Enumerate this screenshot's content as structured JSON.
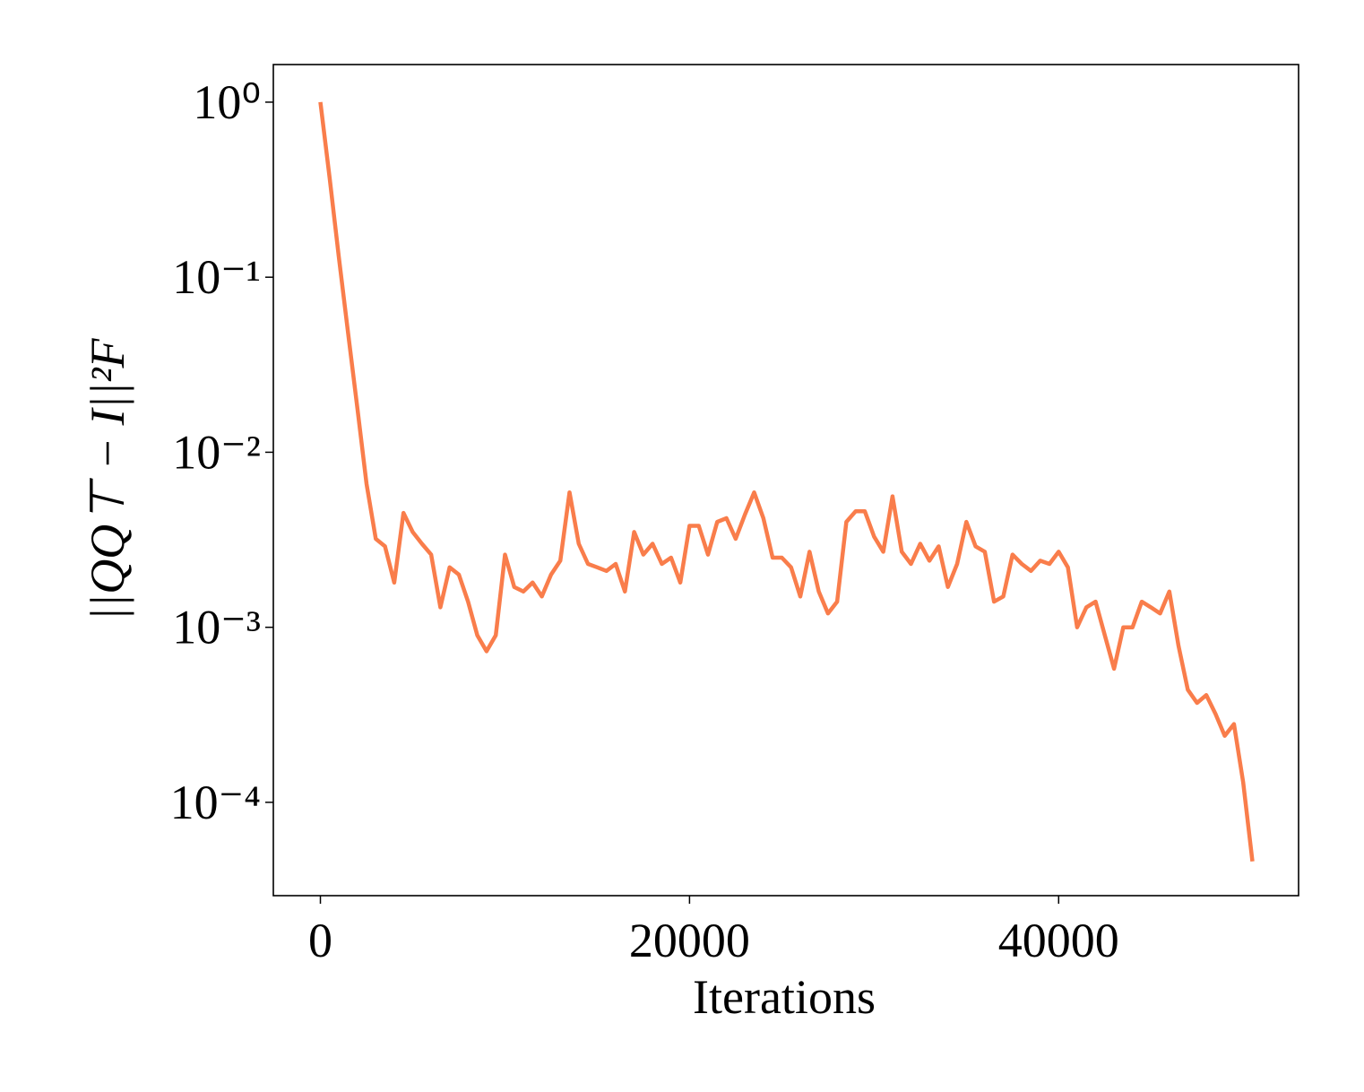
{
  "chart_data": {
    "type": "line",
    "xlabel": "Iterations",
    "ylabel": "||QQ⊤ − I||²F",
    "yscale": "log",
    "grid": false,
    "color": "#f97d4b",
    "xlim": [
      -2550,
      53000
    ],
    "ylim": [
      2.93e-05,
      1.64
    ],
    "xticks": [
      0,
      20000,
      40000
    ],
    "yticks": [
      {
        "value": 1,
        "label": "10⁰"
      },
      {
        "value": 0.1,
        "label": "10⁻¹"
      },
      {
        "value": 0.01,
        "label": "10⁻²"
      },
      {
        "value": 0.001,
        "label": "10⁻³"
      },
      {
        "value": 0.0001,
        "label": "10⁻⁴"
      }
    ],
    "x": [
      0,
      500,
      1000,
      1500,
      2000,
      2500,
      3000,
      3500,
      4000,
      4500,
      5000,
      5500,
      6000,
      6500,
      7000,
      7500,
      8000,
      8500,
      9000,
      9500,
      10000,
      10500,
      11000,
      11500,
      12000,
      12500,
      13000,
      13500,
      14000,
      14500,
      15000,
      15500,
      16000,
      16500,
      17000,
      17500,
      18000,
      18500,
      19000,
      19500,
      20000,
      20500,
      21000,
      21500,
      22000,
      22500,
      23000,
      23500,
      24000,
      24500,
      25000,
      25500,
      26000,
      26500,
      27000,
      27500,
      28000,
      28500,
      29000,
      29500,
      30000,
      30500,
      31000,
      31500,
      32000,
      32500,
      33000,
      33500,
      34000,
      34500,
      35000,
      35500,
      36000,
      36500,
      37000,
      37500,
      38000,
      38500,
      39000,
      39500,
      40000,
      40500,
      41000,
      41500,
      42000,
      42500,
      43000,
      43500,
      44000,
      44500,
      45000,
      45500,
      46000,
      46500,
      47000,
      47500,
      48000,
      48500,
      49000,
      49500,
      50000,
      50500
    ],
    "values": [
      1,
      0.37,
      0.13,
      0.048,
      0.018,
      0.0066,
      0.0032,
      0.0029,
      0.0018,
      0.0045,
      0.0035,
      0.003,
      0.0026,
      0.0013,
      0.0022,
      0.002,
      0.0014,
      0.0009,
      0.00073,
      0.0009,
      0.0026,
      0.0017,
      0.0016,
      0.0018,
      0.0015,
      0.002,
      0.0024,
      0.0059,
      0.003,
      0.0023,
      0.0022,
      0.0021,
      0.0023,
      0.0016,
      0.0035,
      0.0026,
      0.003,
      0.0023,
      0.0025,
      0.0018,
      0.0038,
      0.0038,
      0.0026,
      0.004,
      0.0042,
      0.0032,
      0.0044,
      0.0059,
      0.0042,
      0.0025,
      0.0025,
      0.0022,
      0.0015,
      0.0027,
      0.0016,
      0.0012,
      0.0014,
      0.004,
      0.0046,
      0.0046,
      0.0033,
      0.0027,
      0.0056,
      0.0027,
      0.0023,
      0.003,
      0.0024,
      0.0029,
      0.0017,
      0.0023,
      0.004,
      0.0029,
      0.0027,
      0.0014,
      0.0015,
      0.0026,
      0.0023,
      0.0021,
      0.0024,
      0.0023,
      0.0027,
      0.0022,
      0.001,
      0.0013,
      0.0014,
      0.0009,
      0.00058,
      0.001,
      0.001,
      0.0014,
      0.0013,
      0.0012,
      0.0016,
      0.00078,
      0.00044,
      0.00037,
      0.00041,
      0.00032,
      0.00024,
      0.00028,
      0.00013,
      4.6e-05
    ]
  }
}
